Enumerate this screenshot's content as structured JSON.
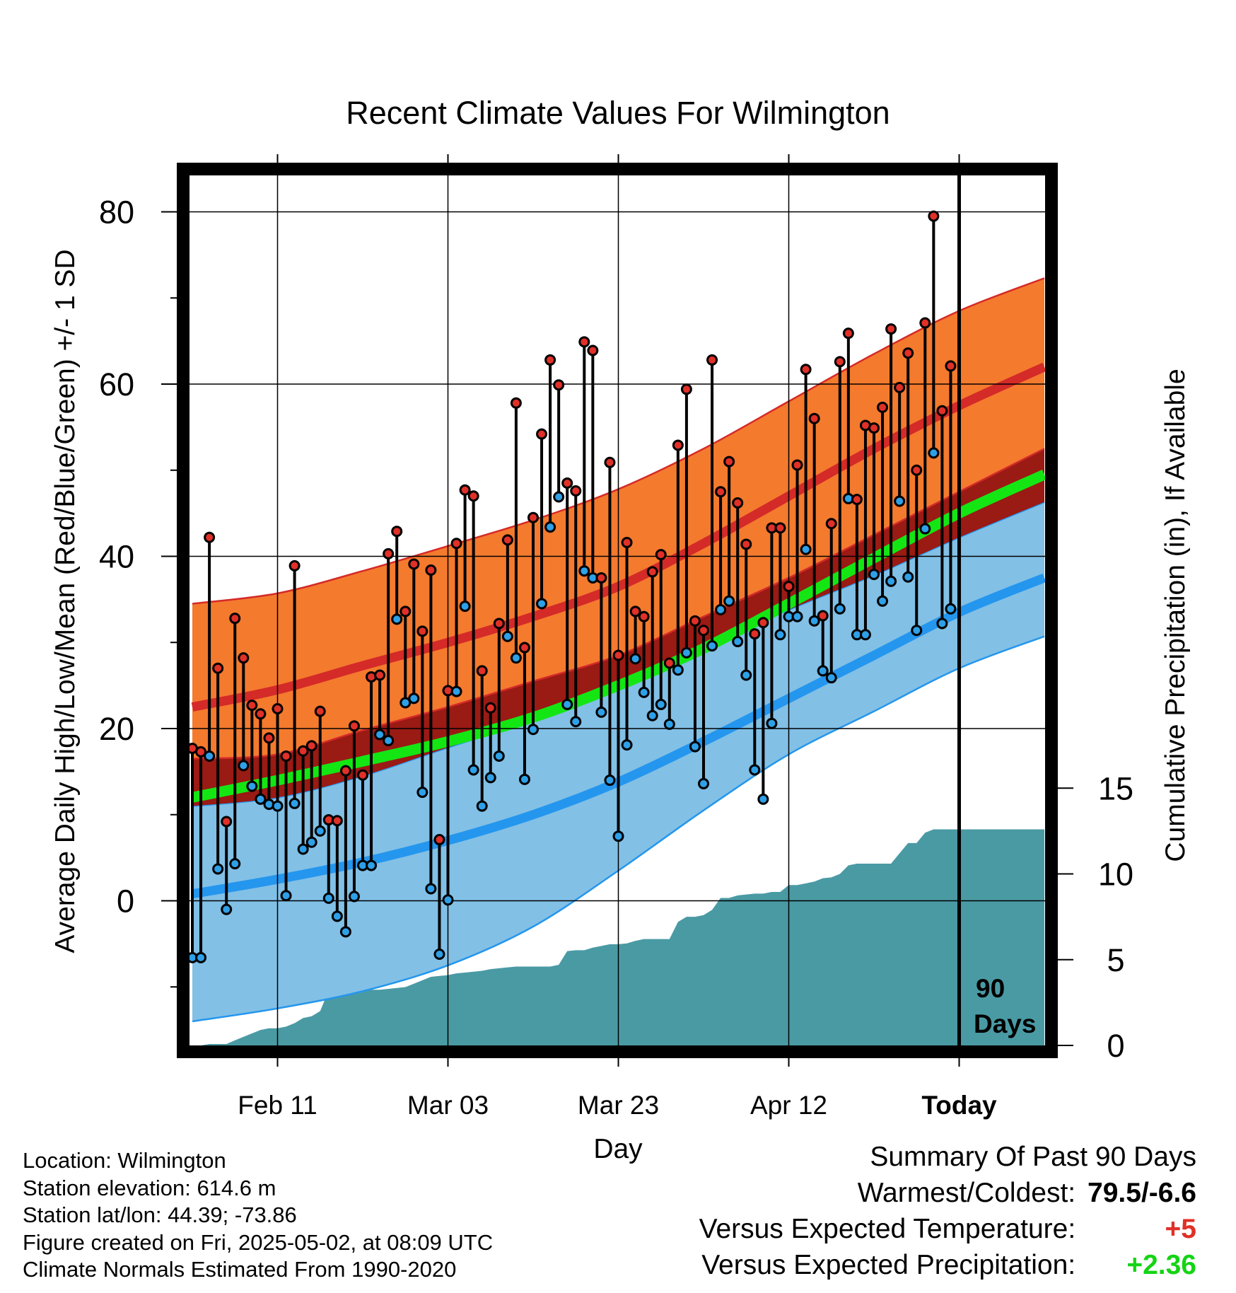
{
  "chart_data": {
    "type": "line",
    "title": "Recent Climate Values For Wilmington",
    "xlabel": "Day",
    "ylabel": "Average Daily High/Low/Mean (Red/Blue/Green) +/- 1 SD",
    "y2label": "Cumulative Precipitation (in), If Available",
    "xlim": [
      1,
      101
    ],
    "ylim": [
      -16,
      87
    ],
    "y2lim": [
      0,
      30
    ],
    "x_ticks": [
      {
        "x": 11,
        "label": "Feb 11"
      },
      {
        "x": 31,
        "label": "Mar 03"
      },
      {
        "x": 51,
        "label": "Mar 23"
      },
      {
        "x": 71,
        "label": "Apr 12"
      },
      {
        "x": 91,
        "label": "Today"
      }
    ],
    "y_ticks": [
      0,
      20,
      40,
      60,
      80
    ],
    "y2_ticks": [
      0,
      5,
      10,
      15
    ],
    "today_marker": {
      "x": 91,
      "label_line1": "90",
      "label_line2": "Days"
    },
    "normals": {
      "x": [
        1,
        11,
        21,
        31,
        41,
        51,
        61,
        71,
        81,
        91,
        101
      ],
      "high_mean": [
        22.5,
        24.5,
        27.3,
        30.0,
        33.0,
        36.5,
        41.5,
        47.0,
        52.5,
        57.5,
        62.0
      ],
      "high_upper": [
        34.5,
        35.7,
        38.3,
        41.2,
        44.2,
        47.8,
        52.5,
        58.0,
        63.5,
        68.5,
        72.3
      ],
      "high_lower": [
        16.5,
        17.0,
        19.8,
        22.5,
        25.5,
        28.5,
        33.0,
        37.5,
        42.5,
        47.5,
        52.5
      ],
      "low_mean": [
        0.8,
        2.5,
        4.5,
        7.0,
        10.0,
        13.8,
        18.5,
        23.5,
        28.5,
        33.5,
        37.5
      ],
      "low_upper": [
        11.0,
        12.0,
        14.5,
        17.8,
        21.0,
        24.5,
        29.5,
        33.8,
        37.8,
        42.2,
        46.3
      ],
      "low_lower": [
        -14.0,
        -12.5,
        -10.5,
        -7.5,
        -3.0,
        3.5,
        10.5,
        17.0,
        22.0,
        27.0,
        30.7
      ],
      "mean": [
        12.0,
        14.0,
        16.2,
        18.5,
        21.3,
        25.0,
        29.3,
        34.5,
        39.8,
        45.0,
        49.5
      ]
    },
    "daily": {
      "x": [
        1,
        2,
        3,
        4,
        5,
        6,
        7,
        8,
        9,
        10,
        11,
        12,
        13,
        14,
        15,
        16,
        17,
        18,
        19,
        20,
        21,
        22,
        23,
        24,
        25,
        26,
        27,
        28,
        29,
        30,
        31,
        32,
        33,
        34,
        35,
        36,
        37,
        38,
        39,
        40,
        41,
        42,
        43,
        44,
        45,
        46,
        47,
        48,
        49,
        50,
        51,
        52,
        53,
        54,
        55,
        56,
        57,
        58,
        59,
        60,
        61,
        62,
        63,
        64,
        65,
        66,
        67,
        68,
        69,
        70,
        71,
        72,
        73,
        74,
        75,
        76,
        77,
        78,
        79,
        80,
        81,
        82,
        83,
        84,
        85,
        86,
        87,
        88,
        89,
        90
      ],
      "high": [
        17.7,
        17.3,
        42.2,
        27.0,
        9.2,
        32.8,
        28.2,
        22.7,
        21.7,
        18.9,
        22.3,
        16.8,
        38.9,
        17.4,
        18.0,
        22.0,
        9.4,
        9.3,
        15.1,
        20.3,
        14.6,
        26.0,
        26.2,
        40.3,
        42.9,
        33.6,
        39.1,
        31.3,
        38.4,
        7.1,
        24.4,
        41.5,
        47.7,
        47.0,
        26.7,
        22.4,
        32.2,
        41.9,
        57.8,
        29.4,
        44.5,
        54.2,
        62.8,
        59.9,
        48.5,
        47.6,
        64.9,
        63.9,
        37.5,
        50.9,
        28.5,
        41.6,
        33.6,
        33.0,
        38.2,
        40.2,
        27.6,
        52.9,
        59.4,
        32.5,
        31.4,
        62.8,
        47.5,
        51.0,
        46.2,
        41.4,
        31.0,
        32.3,
        43.3,
        43.3,
        36.5,
        50.6,
        61.7,
        56.0,
        33.1,
        43.8,
        62.6,
        65.9,
        46.6,
        55.2,
        54.9,
        57.3,
        66.4,
        59.6,
        63.6,
        50.0,
        67.1,
        79.5,
        56.9,
        62.1
      ],
      "low": [
        -6.6,
        -6.6,
        16.8,
        3.7,
        -1.0,
        4.3,
        15.7,
        13.3,
        11.8,
        11.2,
        11.0,
        0.6,
        11.3,
        6.0,
        6.8,
        8.1,
        0.3,
        -1.8,
        -3.6,
        0.5,
        4.1,
        4.1,
        19.3,
        18.6,
        32.7,
        23.0,
        23.5,
        12.6,
        1.4,
        -6.2,
        0.1,
        24.3,
        34.2,
        15.2,
        11.0,
        14.3,
        16.8,
        30.7,
        28.2,
        14.1,
        19.9,
        34.5,
        43.4,
        46.9,
        22.8,
        20.8,
        38.3,
        37.5,
        21.9,
        14.0,
        7.5,
        18.1,
        28.1,
        24.2,
        21.5,
        22.8,
        20.5,
        26.8,
        28.8,
        17.9,
        13.6,
        29.6,
        33.8,
        34.8,
        30.1,
        26.2,
        15.2,
        11.8,
        20.6,
        30.9,
        33.0,
        33.0,
        40.8,
        32.5,
        26.7,
        25.9,
        33.9,
        46.7,
        30.9,
        30.9,
        37.9,
        34.8,
        37.1,
        46.4,
        37.6,
        31.4,
        43.2,
        52.0,
        32.2,
        33.9
      ]
    },
    "precip": {
      "x": [
        1,
        2,
        3,
        4,
        5,
        6,
        7,
        8,
        9,
        10,
        11,
        12,
        13,
        14,
        15,
        16,
        17,
        18,
        19,
        20,
        21,
        22,
        23,
        24,
        25,
        26,
        27,
        28,
        29,
        30,
        31,
        32,
        33,
        34,
        35,
        36,
        37,
        38,
        39,
        40,
        41,
        42,
        43,
        44,
        45,
        46,
        47,
        48,
        49,
        50,
        51,
        52,
        53,
        54,
        55,
        56,
        57,
        58,
        59,
        60,
        61,
        62,
        63,
        64,
        65,
        66,
        67,
        68,
        69,
        70,
        71,
        72,
        73,
        74,
        75,
        76,
        77,
        78,
        79,
        80,
        81,
        82,
        83,
        84,
        85,
        86,
        87,
        88,
        89,
        90,
        101
      ],
      "cum": [
        0,
        0,
        0.08,
        0.08,
        0.08,
        0.3,
        0.5,
        0.7,
        0.9,
        1.0,
        1.0,
        1.1,
        1.3,
        1.6,
        1.7,
        2.0,
        3.2,
        3.2,
        3.2,
        3.2,
        3.2,
        3.25,
        3.25,
        3.3,
        3.35,
        3.4,
        3.6,
        3.8,
        4.0,
        4.05,
        4.1,
        4.2,
        4.25,
        4.3,
        4.35,
        4.45,
        4.5,
        4.55,
        4.6,
        4.6,
        4.6,
        4.6,
        4.6,
        4.7,
        5.5,
        5.55,
        5.55,
        5.7,
        5.8,
        5.9,
        5.9,
        5.95,
        6.1,
        6.2,
        6.2,
        6.2,
        6.2,
        7.2,
        7.5,
        7.5,
        7.6,
        7.9,
        8.6,
        8.6,
        8.75,
        8.8,
        8.85,
        8.85,
        8.95,
        8.95,
        9.35,
        9.35,
        9.45,
        9.55,
        9.75,
        9.8,
        10.0,
        10.5,
        10.6,
        10.6,
        10.6,
        10.6,
        10.6,
        11.2,
        11.8,
        11.8,
        12.4,
        12.6,
        12.6,
        12.6,
        12.6
      ]
    },
    "colors": {
      "high_band": "#f47a2e",
      "high_mean_line": "#d42a28",
      "high_lower_overlap": "#9a1a14",
      "low_band": "#82c0e6",
      "low_line": "#2496ee",
      "mean_line": "#14e614",
      "precip_fill": "#4a9aa4",
      "high_point": "#e03028",
      "low_point": "#2ea0e8",
      "warm_value": "#e03028",
      "wet_value": "#14d414"
    }
  },
  "info": {
    "location": "Location: Wilmington",
    "elevation": "Station elevation: 614.6 m",
    "latlon": "Station lat/lon: 44.39; -73.86",
    "created": "Figure created on Fri, 2025-05-02, at 08:09 UTC",
    "normals": "Climate Normals Estimated From 1990-2020"
  },
  "summary": {
    "heading": "Summary Of Past 90 Days",
    "warm_label": "Warmest/Coldest:",
    "warm_value": "79.5/-6.6",
    "temp_label": "Versus Expected Temperature:",
    "temp_value": "+5",
    "precip_label": "Versus Expected Precipitation:",
    "precip_value": "+2.36"
  }
}
